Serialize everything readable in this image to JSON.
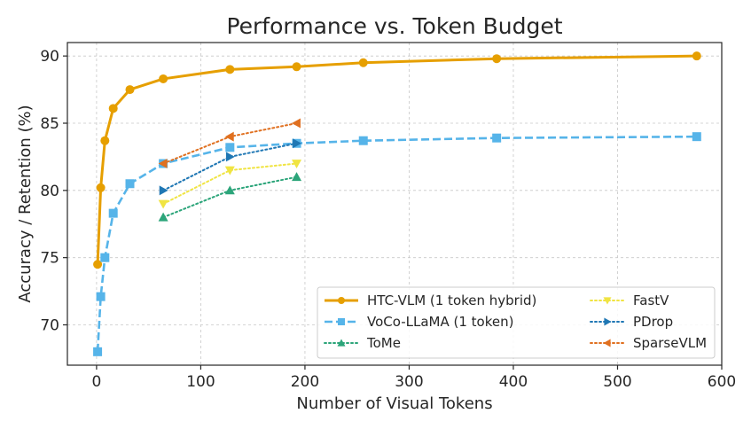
{
  "chart_data": {
    "type": "line",
    "title": "Performance vs. Token Budget",
    "xlabel": "Number of Visual Tokens",
    "ylabel": "Accuracy / Retention (%)",
    "xlim": [
      -28,
      600
    ],
    "ylim": [
      67,
      91
    ],
    "xticks": [
      0,
      100,
      200,
      300,
      400,
      500,
      600
    ],
    "yticks": [
      70,
      75,
      80,
      85,
      90
    ],
    "grid": true,
    "legend_position": "lower-right",
    "series": [
      {
        "name": "HTC-VLM (1 token hybrid)",
        "color": "#E69F00",
        "style": "solid",
        "marker": "circle",
        "x": [
          1,
          4,
          8,
          16,
          32,
          64,
          128,
          192,
          256,
          384,
          576
        ],
        "y": [
          74.5,
          80.2,
          83.7,
          86.1,
          87.5,
          88.3,
          89.0,
          89.2,
          89.5,
          89.8,
          90.0
        ]
      },
      {
        "name": "VoCo-LLaMA (1 token)",
        "color": "#56B4E9",
        "style": "dashed",
        "marker": "square",
        "x": [
          1,
          4,
          8,
          16,
          32,
          64,
          128,
          192,
          256,
          384,
          576
        ],
        "y": [
          68.0,
          72.1,
          75.0,
          78.3,
          80.5,
          82.0,
          83.2,
          83.5,
          83.7,
          83.9,
          84.0
        ]
      },
      {
        "name": "ToMe",
        "color": "#2CA57A",
        "style": "dotted",
        "marker": "triangle-up",
        "x": [
          64,
          128,
          192
        ],
        "y": [
          78.0,
          80.0,
          81.0
        ]
      },
      {
        "name": "FastV",
        "color": "#F0E442",
        "style": "dotted",
        "marker": "triangle-down",
        "x": [
          64,
          128,
          192
        ],
        "y": [
          79.0,
          81.5,
          82.0
        ]
      },
      {
        "name": "PDrop",
        "color": "#1F77B4",
        "style": "dotted",
        "marker": "triangle-right",
        "x": [
          64,
          128,
          192
        ],
        "y": [
          80.0,
          82.5,
          83.5
        ]
      },
      {
        "name": "SparseVLM",
        "color": "#E07020",
        "style": "dotted",
        "marker": "triangle-left",
        "x": [
          64,
          128,
          192
        ],
        "y": [
          82.0,
          84.0,
          85.0
        ]
      }
    ]
  }
}
